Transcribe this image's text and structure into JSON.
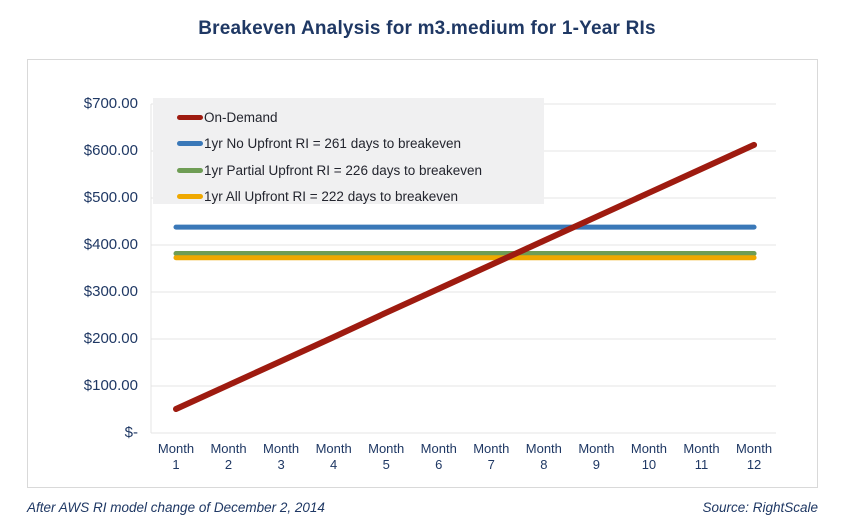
{
  "page": {
    "title": "Breakeven Analysis for m3.medium for 1-Year RIs",
    "footer_left": "After AWS RI model change of December 2, 2014",
    "footer_right": "Source: RightScale"
  },
  "colors": {
    "title_navy": "#1f3864",
    "axis_text": "#1f3864",
    "legend_text": "#23252e",
    "legend_bg": "#f0f0f1",
    "gridline": "#e4e4e4",
    "panel_border": "#d9d9d9",
    "on_demand": "#9e1b10",
    "no_upfront": "#3a78b8",
    "partial_upfront": "#6f9d55",
    "all_upfront": "#efa800"
  },
  "chart_data": {
    "type": "line",
    "title": "Breakeven Analysis for m3.medium for 1-Year RIs",
    "xlabel": "",
    "ylabel": "",
    "ylim": [
      0,
      700
    ],
    "grid": "horizontal",
    "legend_position": "top-left",
    "categories": [
      "Month 1",
      "Month 2",
      "Month 3",
      "Month 4",
      "Month 5",
      "Month 6",
      "Month 7",
      "Month 8",
      "Month 9",
      "Month 10",
      "Month 11",
      "Month 12"
    ],
    "y_ticks": [
      {
        "label": "$700.00",
        "value": 700
      },
      {
        "label": "$600.00",
        "value": 600
      },
      {
        "label": "$500.00",
        "value": 500
      },
      {
        "label": "$400.00",
        "value": 400
      },
      {
        "label": "$300.00",
        "value": 300
      },
      {
        "label": "$200.00",
        "value": 200
      },
      {
        "label": "$100.00",
        "value": 100
      },
      {
        "label": "$-",
        "value": 0
      }
    ],
    "series": [
      {
        "name": "On-Demand",
        "color_key": "on_demand",
        "values": [
          51,
          102,
          153,
          204,
          256,
          307,
          358,
          409,
          460,
          511,
          562,
          613
        ]
      },
      {
        "name": "1yr No Upfront RI = 261 days to breakeven",
        "color_key": "no_upfront",
        "days_to_breakeven": 261,
        "values": [
          438,
          438,
          438,
          438,
          438,
          438,
          438,
          438,
          438,
          438,
          438,
          438
        ]
      },
      {
        "name": "1yr Partial Upfront RI = 226 days to breakeven",
        "color_key": "partial_upfront",
        "days_to_breakeven": 226,
        "values": [
          382,
          382,
          382,
          382,
          382,
          382,
          382,
          382,
          382,
          382,
          382,
          382
        ]
      },
      {
        "name": "1yr All Upfront RI = 222 days to breakeven",
        "color_key": "all_upfront",
        "days_to_breakeven": 222,
        "values": [
          373,
          373,
          373,
          373,
          373,
          373,
          373,
          373,
          373,
          373,
          373,
          373
        ]
      }
    ]
  }
}
